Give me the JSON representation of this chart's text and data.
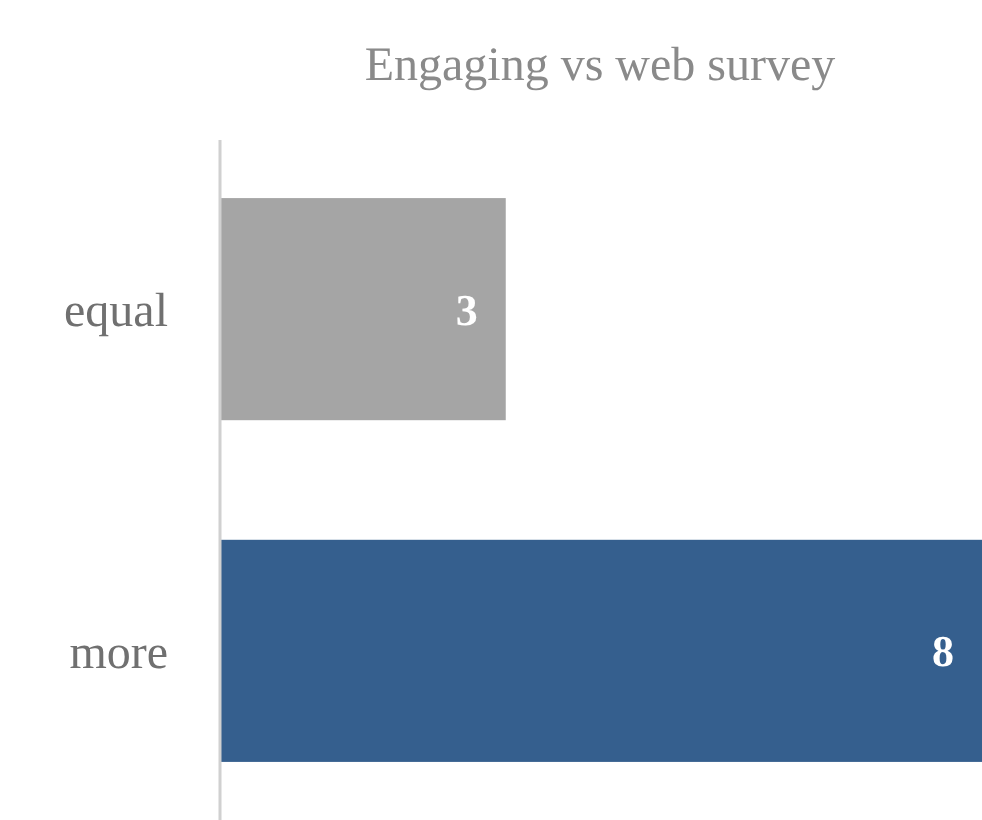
{
  "chart_data": {
    "type": "bar",
    "orientation": "horizontal",
    "title": "Engaging vs web survey",
    "categories": [
      "equal",
      "more"
    ],
    "values": [
      3,
      8
    ],
    "colors": [
      "#a5a5a5",
      "#355f8e"
    ],
    "data_labels": true
  }
}
